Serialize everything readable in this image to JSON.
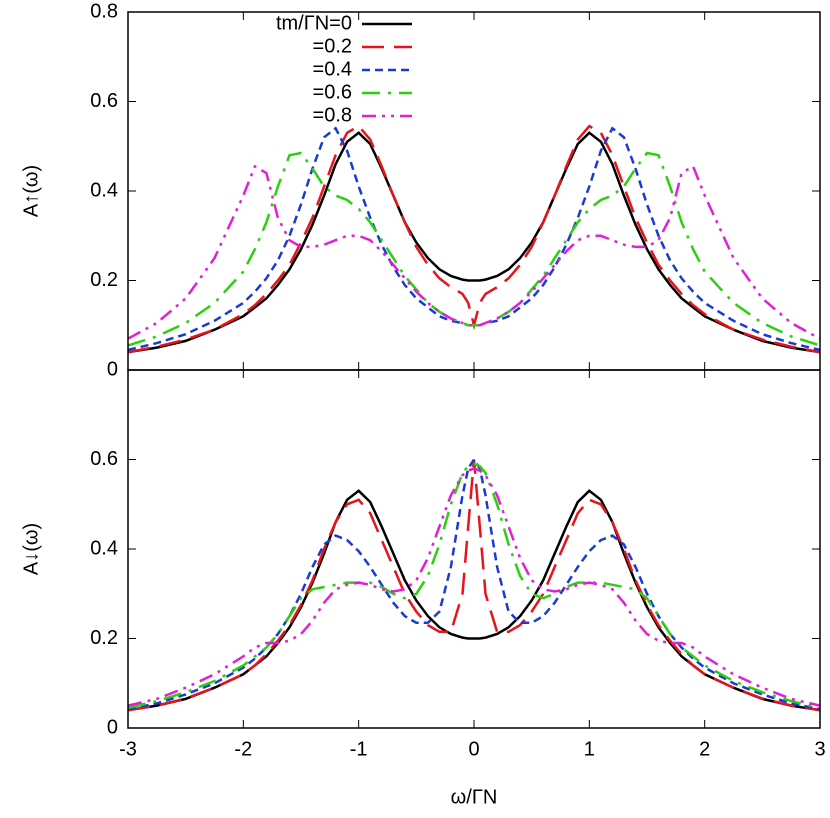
{
  "chart_data": [
    {
      "type": "line",
      "ylabel": "A↑(ω)",
      "legend": "top-center",
      "x": [
        -3,
        -2.75,
        -2.5,
        -2.25,
        -2,
        -1.9,
        -1.8,
        -1.7,
        -1.6,
        -1.5,
        -1.4,
        -1.3,
        -1.2,
        -1.1,
        -1,
        -0.9,
        -0.8,
        -0.7,
        -0.6,
        -0.5,
        -0.4,
        -0.3,
        -0.2,
        -0.1,
        -0.05,
        0,
        0.05,
        0.1,
        0.2,
        0.3,
        0.4,
        0.5,
        0.6,
        0.7,
        0.8,
        0.9,
        1,
        1.1,
        1.2,
        1.3,
        1.4,
        1.5,
        1.6,
        1.7,
        1.8,
        1.9,
        2,
        2.25,
        2.5,
        2.75,
        3
      ],
      "xlim": [
        -3,
        3
      ],
      "ylim": [
        0,
        0.8
      ],
      "yticks": [
        0,
        0.2,
        0.4,
        0.6,
        0.8
      ],
      "series": [
        {
          "name": "tm/ΓN=0",
          "color": "#000000",
          "dash": "solid",
          "values": [
            0.04,
            0.05,
            0.065,
            0.09,
            0.12,
            0.14,
            0.16,
            0.19,
            0.225,
            0.27,
            0.325,
            0.39,
            0.46,
            0.51,
            0.53,
            0.505,
            0.45,
            0.39,
            0.33,
            0.285,
            0.25,
            0.225,
            0.21,
            0.202,
            0.2,
            0.2,
            0.2,
            0.202,
            0.21,
            0.225,
            0.25,
            0.285,
            0.33,
            0.39,
            0.45,
            0.505,
            0.53,
            0.51,
            0.46,
            0.39,
            0.325,
            0.27,
            0.225,
            0.19,
            0.16,
            0.14,
            0.12,
            0.09,
            0.065,
            0.05,
            0.04
          ]
        },
        {
          "name": "=0.2",
          "color": "#e8141c",
          "dash": "long-dash",
          "values": [
            0.04,
            0.052,
            0.068,
            0.09,
            0.125,
            0.145,
            0.17,
            0.2,
            0.235,
            0.285,
            0.34,
            0.41,
            0.48,
            0.53,
            0.545,
            0.515,
            0.455,
            0.39,
            0.33,
            0.275,
            0.235,
            0.205,
            0.185,
            0.17,
            0.15,
            0.1,
            0.15,
            0.17,
            0.185,
            0.205,
            0.235,
            0.275,
            0.33,
            0.39,
            0.455,
            0.515,
            0.545,
            0.53,
            0.48,
            0.41,
            0.34,
            0.285,
            0.235,
            0.2,
            0.17,
            0.145,
            0.125,
            0.09,
            0.068,
            0.052,
            0.04
          ]
        },
        {
          "name": "=0.4",
          "color": "#1a3ad6",
          "dash": "short-dash",
          "values": [
            0.045,
            0.06,
            0.08,
            0.11,
            0.15,
            0.175,
            0.205,
            0.245,
            0.3,
            0.37,
            0.45,
            0.52,
            0.54,
            0.49,
            0.41,
            0.34,
            0.28,
            0.23,
            0.19,
            0.16,
            0.14,
            0.12,
            0.11,
            0.105,
            0.1,
            0.1,
            0.1,
            0.105,
            0.11,
            0.12,
            0.14,
            0.16,
            0.19,
            0.23,
            0.28,
            0.34,
            0.41,
            0.49,
            0.54,
            0.52,
            0.45,
            0.37,
            0.3,
            0.245,
            0.205,
            0.175,
            0.15,
            0.11,
            0.08,
            0.06,
            0.045
          ]
        },
        {
          "name": "=0.6",
          "color": "#2ccf10",
          "dash": "dash-dot",
          "values": [
            0.055,
            0.075,
            0.105,
            0.15,
            0.22,
            0.27,
            0.33,
            0.41,
            0.48,
            0.485,
            0.45,
            0.41,
            0.39,
            0.38,
            0.36,
            0.33,
            0.29,
            0.25,
            0.21,
            0.18,
            0.15,
            0.13,
            0.115,
            0.105,
            0.1,
            0.1,
            0.1,
            0.105,
            0.115,
            0.13,
            0.15,
            0.18,
            0.21,
            0.25,
            0.29,
            0.33,
            0.36,
            0.38,
            0.39,
            0.41,
            0.45,
            0.485,
            0.48,
            0.41,
            0.33,
            0.27,
            0.22,
            0.15,
            0.105,
            0.075,
            0.055
          ]
        },
        {
          "name": "=0.8",
          "color": "#e020d8",
          "dash": "dash-dot-dot",
          "values": [
            0.07,
            0.105,
            0.16,
            0.25,
            0.39,
            0.455,
            0.44,
            0.34,
            0.29,
            0.275,
            0.275,
            0.28,
            0.29,
            0.3,
            0.3,
            0.29,
            0.265,
            0.235,
            0.205,
            0.175,
            0.15,
            0.13,
            0.115,
            0.105,
            0.1,
            0.1,
            0.1,
            0.105,
            0.115,
            0.13,
            0.15,
            0.175,
            0.205,
            0.235,
            0.265,
            0.29,
            0.3,
            0.3,
            0.29,
            0.28,
            0.275,
            0.275,
            0.29,
            0.34,
            0.44,
            0.455,
            0.39,
            0.25,
            0.16,
            0.105,
            0.07
          ]
        }
      ]
    },
    {
      "type": "line",
      "ylabel": "A↓(ω)",
      "xlabel": "ω/ΓN",
      "x": [
        -3,
        -2.75,
        -2.5,
        -2.25,
        -2,
        -1.9,
        -1.8,
        -1.7,
        -1.6,
        -1.5,
        -1.4,
        -1.3,
        -1.2,
        -1.1,
        -1,
        -0.9,
        -0.8,
        -0.7,
        -0.6,
        -0.5,
        -0.4,
        -0.3,
        -0.2,
        -0.1,
        -0.05,
        0,
        0.05,
        0.1,
        0.2,
        0.3,
        0.4,
        0.5,
        0.6,
        0.7,
        0.8,
        0.9,
        1,
        1.1,
        1.2,
        1.3,
        1.4,
        1.5,
        1.6,
        1.7,
        1.8,
        1.9,
        2,
        2.25,
        2.5,
        2.75,
        3
      ],
      "xlim": [
        -3,
        3
      ],
      "xticks": [
        -3,
        -2,
        -1,
        0,
        1,
        2,
        3
      ],
      "ylim": [
        0,
        0.8
      ],
      "yticks": [
        0,
        0.2,
        0.4,
        0.6
      ],
      "series": [
        {
          "color": "#000000",
          "dash": "solid",
          "values": [
            0.04,
            0.05,
            0.065,
            0.09,
            0.12,
            0.14,
            0.16,
            0.19,
            0.225,
            0.27,
            0.325,
            0.39,
            0.46,
            0.51,
            0.53,
            0.505,
            0.45,
            0.39,
            0.33,
            0.285,
            0.25,
            0.225,
            0.21,
            0.202,
            0.2,
            0.2,
            0.2,
            0.202,
            0.21,
            0.225,
            0.25,
            0.285,
            0.33,
            0.39,
            0.45,
            0.505,
            0.53,
            0.51,
            0.46,
            0.39,
            0.325,
            0.27,
            0.225,
            0.19,
            0.16,
            0.14,
            0.12,
            0.09,
            0.065,
            0.05,
            0.04
          ]
        },
        {
          "color": "#e8141c",
          "dash": "long-dash",
          "values": [
            0.04,
            0.05,
            0.066,
            0.09,
            0.12,
            0.14,
            0.165,
            0.195,
            0.23,
            0.275,
            0.33,
            0.4,
            0.46,
            0.5,
            0.51,
            0.48,
            0.42,
            0.36,
            0.3,
            0.26,
            0.23,
            0.215,
            0.215,
            0.3,
            0.45,
            0.6,
            0.45,
            0.3,
            0.215,
            0.215,
            0.23,
            0.26,
            0.3,
            0.36,
            0.42,
            0.48,
            0.51,
            0.5,
            0.46,
            0.4,
            0.33,
            0.275,
            0.23,
            0.195,
            0.165,
            0.14,
            0.12,
            0.09,
            0.066,
            0.05,
            0.04
          ]
        },
        {
          "color": "#1a3ad6",
          "dash": "short-dash",
          "values": [
            0.042,
            0.055,
            0.075,
            0.1,
            0.135,
            0.155,
            0.18,
            0.21,
            0.25,
            0.3,
            0.36,
            0.41,
            0.43,
            0.42,
            0.395,
            0.36,
            0.32,
            0.28,
            0.25,
            0.235,
            0.235,
            0.26,
            0.36,
            0.52,
            0.58,
            0.6,
            0.58,
            0.52,
            0.36,
            0.26,
            0.235,
            0.235,
            0.25,
            0.28,
            0.32,
            0.36,
            0.395,
            0.42,
            0.43,
            0.41,
            0.36,
            0.3,
            0.25,
            0.21,
            0.18,
            0.155,
            0.135,
            0.1,
            0.075,
            0.055,
            0.042
          ]
        },
        {
          "color": "#2ccf10",
          "dash": "dash-dot",
          "values": [
            0.045,
            0.06,
            0.08,
            0.105,
            0.14,
            0.16,
            0.18,
            0.21,
            0.25,
            0.29,
            0.31,
            0.315,
            0.32,
            0.325,
            0.325,
            0.325,
            0.315,
            0.3,
            0.29,
            0.3,
            0.34,
            0.41,
            0.5,
            0.57,
            0.585,
            0.59,
            0.585,
            0.57,
            0.5,
            0.41,
            0.34,
            0.3,
            0.29,
            0.3,
            0.315,
            0.325,
            0.325,
            0.325,
            0.32,
            0.315,
            0.31,
            0.29,
            0.25,
            0.21,
            0.18,
            0.16,
            0.14,
            0.105,
            0.08,
            0.06,
            0.045
          ]
        },
        {
          "color": "#e020d8",
          "dash": "dash-dot-dot",
          "values": [
            0.05,
            0.065,
            0.09,
            0.12,
            0.16,
            0.18,
            0.19,
            0.19,
            0.195,
            0.21,
            0.24,
            0.28,
            0.31,
            0.32,
            0.325,
            0.32,
            0.31,
            0.305,
            0.31,
            0.33,
            0.38,
            0.45,
            0.52,
            0.565,
            0.575,
            0.58,
            0.575,
            0.565,
            0.52,
            0.45,
            0.38,
            0.33,
            0.31,
            0.305,
            0.31,
            0.32,
            0.325,
            0.32,
            0.31,
            0.28,
            0.24,
            0.21,
            0.195,
            0.19,
            0.19,
            0.18,
            0.16,
            0.12,
            0.09,
            0.065,
            0.05
          ]
        }
      ]
    }
  ]
}
